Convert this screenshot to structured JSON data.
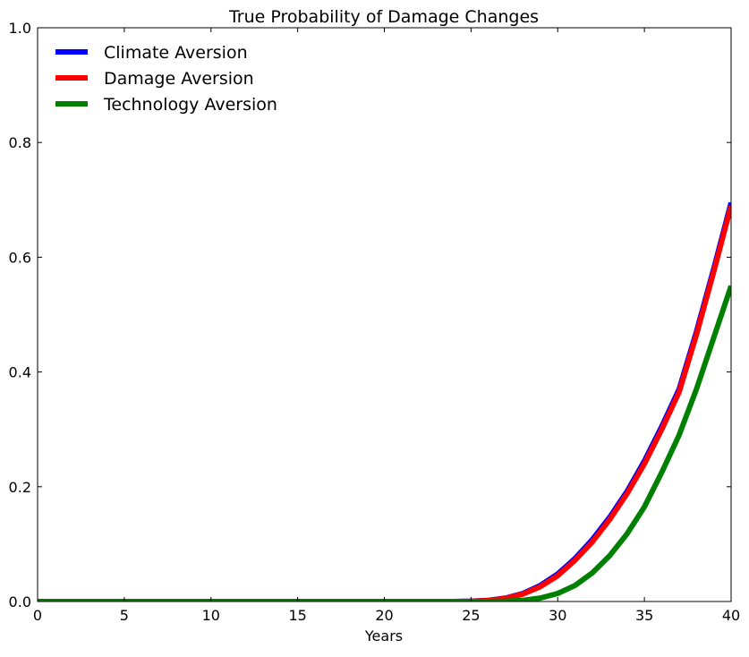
{
  "chart_data": {
    "type": "line",
    "title": "True Probability of Damage Changes",
    "xlabel": "Years",
    "ylabel": "",
    "xlim": [
      0,
      40
    ],
    "ylim": [
      0.0,
      1.0
    ],
    "xticks": [
      "0",
      "5",
      "10",
      "15",
      "20",
      "25",
      "30",
      "35",
      "40"
    ],
    "yticks": [
      "0.0",
      "0.2",
      "0.4",
      "0.6",
      "0.8",
      "1.0"
    ],
    "grid": false,
    "legend_position": "top-left",
    "x": [
      0,
      5,
      10,
      15,
      20,
      24,
      25,
      26,
      27,
      28,
      29,
      30,
      31,
      32,
      33,
      34,
      35,
      36,
      37,
      38,
      39,
      40
    ],
    "series": [
      {
        "name": "Climate Aversion",
        "color": "#0000ff",
        "values": [
          0,
          0,
          0,
          0,
          0,
          0,
          0.0005,
          0.002,
          0.006,
          0.014,
          0.028,
          0.048,
          0.075,
          0.108,
          0.147,
          0.192,
          0.245,
          0.305,
          0.37,
          0.47,
          0.58,
          0.695
        ]
      },
      {
        "name": "Damage Aversion",
        "color": "#ff0000",
        "values": [
          0,
          0,
          0,
          0,
          0,
          0,
          0.0004,
          0.0018,
          0.0055,
          0.013,
          0.026,
          0.045,
          0.072,
          0.104,
          0.143,
          0.188,
          0.24,
          0.3,
          0.365,
          0.465,
          0.575,
          0.69
        ]
      },
      {
        "name": "Technology Aversion",
        "color": "#008000",
        "values": [
          0,
          0,
          0,
          0,
          0,
          0,
          0,
          0,
          0.0005,
          0.002,
          0.006,
          0.014,
          0.028,
          0.05,
          0.08,
          0.118,
          0.165,
          0.225,
          0.29,
          0.37,
          0.46,
          0.55
        ]
      }
    ]
  }
}
